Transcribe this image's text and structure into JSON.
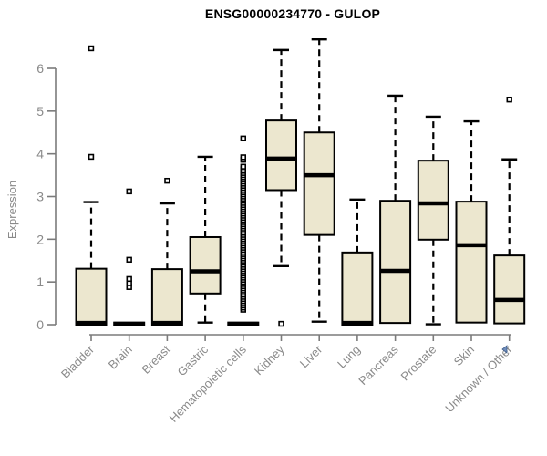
{
  "title": "ENSG00000234770 - GULOP",
  "colors": {
    "background": "#ffffff",
    "box_fill": "#ece7cf",
    "box_border": "#000000",
    "median": "#000000",
    "whisker": "#000000",
    "outlier_stroke": "#000000",
    "outlier_fill": "#ffffff",
    "axis_line": "#7b7b7b",
    "axis_text": "#8a8a8a",
    "title_text": "#000000",
    "cursor": "#6e8cbb"
  },
  "chart_data": {
    "type": "boxplot",
    "title": "ENSG00000234770 - GULOP",
    "xlabel": "",
    "ylabel": "Expression",
    "ylim": [
      0,
      6.9
    ],
    "yticks": [
      0,
      1,
      2,
      3,
      4,
      5,
      6
    ],
    "grid": false,
    "legend": null,
    "categories": [
      "Bladder",
      "Brain",
      "Breast",
      "Gastric",
      "Hematopoietic cells",
      "Kidney",
      "Liver",
      "Lung",
      "Pancreas",
      "Prostate",
      "Skin",
      "Unknown / Other"
    ],
    "series": [
      {
        "name": "Bladder",
        "q1": 0,
        "median": 0.04,
        "q3": 1.31,
        "whisker_low": 0,
        "whisker_high": 2.87,
        "outliers": [
          3.93,
          6.47
        ]
      },
      {
        "name": "Brain",
        "q1": 0,
        "median": 0.02,
        "q3": 0.05,
        "whisker_low": 0,
        "whisker_high": 0.05,
        "outliers": [
          0.88,
          0.97,
          1.07,
          1.52,
          3.12
        ]
      },
      {
        "name": "Breast",
        "q1": 0,
        "median": 0.04,
        "q3": 1.3,
        "whisker_low": 0,
        "whisker_high": 2.84,
        "outliers": [
          3.37
        ]
      },
      {
        "name": "Gastric",
        "q1": 0.73,
        "median": 1.25,
        "q3": 2.05,
        "whisker_low": 0.05,
        "whisker_high": 3.93,
        "outliers": []
      },
      {
        "name": "Hematopoietic cells",
        "q1": 0,
        "median": 0.02,
        "q3": 0.05,
        "whisker_low": 0,
        "whisker_high": 0.05,
        "outliers": [
          0.35,
          0.4,
          0.45,
          0.5,
          0.55,
          0.6,
          0.65,
          0.7,
          0.75,
          0.8,
          0.85,
          0.9,
          0.95,
          1.0,
          1.05,
          1.1,
          1.15,
          1.2,
          1.25,
          1.3,
          1.35,
          1.4,
          1.45,
          1.5,
          1.55,
          1.6,
          1.65,
          1.7,
          1.75,
          1.8,
          1.85,
          1.9,
          1.95,
          2.0,
          2.05,
          2.1,
          2.15,
          2.2,
          2.25,
          2.3,
          2.35,
          2.4,
          2.45,
          2.5,
          2.55,
          2.6,
          2.65,
          2.7,
          2.75,
          2.8,
          2.85,
          2.9,
          2.95,
          3.0,
          3.05,
          3.1,
          3.15,
          3.2,
          3.25,
          3.3,
          3.35,
          3.4,
          3.45,
          3.5,
          3.55,
          3.6,
          3.65,
          3.7,
          3.86,
          3.92,
          4.36
        ]
      },
      {
        "name": "Kidney",
        "q1": 3.15,
        "median": 3.89,
        "q3": 4.78,
        "whisker_low": 1.37,
        "whisker_high": 6.43,
        "outliers": [
          0.02
        ]
      },
      {
        "name": "Liver",
        "q1": 2.1,
        "median": 3.5,
        "q3": 4.5,
        "whisker_low": 0.07,
        "whisker_high": 6.68,
        "outliers": []
      },
      {
        "name": "Lung",
        "q1": 0,
        "median": 0.04,
        "q3": 1.69,
        "whisker_low": 0,
        "whisker_high": 2.93,
        "outliers": []
      },
      {
        "name": "Pancreas",
        "q1": 0.04,
        "median": 1.26,
        "q3": 2.9,
        "whisker_low": 0.04,
        "whisker_high": 5.36,
        "outliers": []
      },
      {
        "name": "Prostate",
        "q1": 1.99,
        "median": 2.84,
        "q3": 3.84,
        "whisker_low": 0.01,
        "whisker_high": 4.87,
        "outliers": []
      },
      {
        "name": "Skin",
        "q1": 0.05,
        "median": 1.86,
        "q3": 2.88,
        "whisker_low": 0.05,
        "whisker_high": 4.76,
        "outliers": []
      },
      {
        "name": "Unknown / Other",
        "q1": 0.03,
        "median": 0.58,
        "q3": 1.62,
        "whisker_low": 0.03,
        "whisker_high": 3.87,
        "outliers": [
          5.27
        ]
      }
    ]
  }
}
